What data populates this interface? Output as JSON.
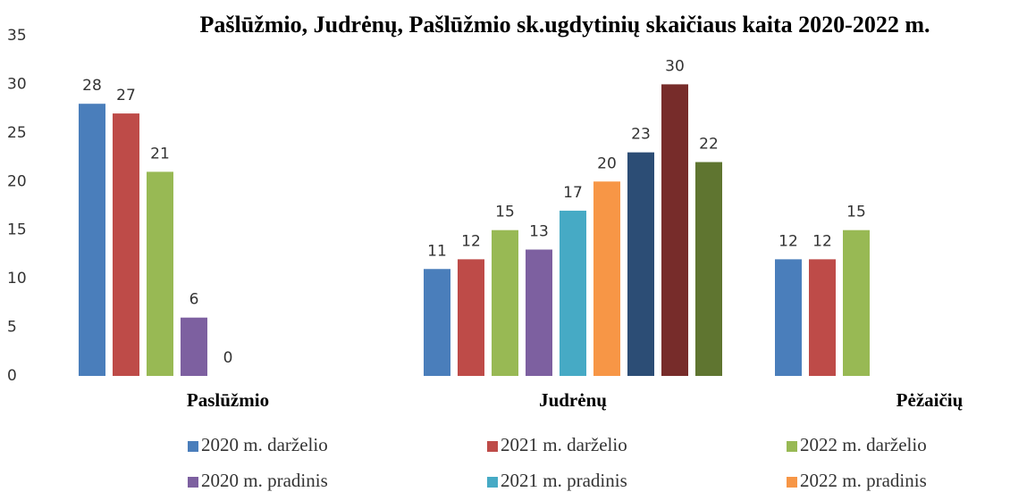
{
  "chart_data": {
    "type": "bar",
    "title": "Pašlūžmio, Judrėnų, Pašlūžmio sk.ugdytinių skaičiaus kaita 2020-2022 m.",
    "categories": [
      "Paslūžmio",
      "Judrėnų",
      "Pėžaičių"
    ],
    "series": [
      {
        "name": "2020 m. darželio",
        "color": "#4a7ebb",
        "values": [
          28,
          11,
          12
        ]
      },
      {
        "name": "2021 m. darželio",
        "color": "#be4b48",
        "values": [
          27,
          12,
          12
        ]
      },
      {
        "name": "2022 m. darželio",
        "color": "#98b954",
        "values": [
          21,
          15,
          15
        ]
      },
      {
        "name": "2020 m. pradinis",
        "color": "#7d60a0",
        "values": [
          6,
          13,
          null
        ]
      },
      {
        "name": "2021 m. pradinis",
        "color": "#46aac5",
        "values": [
          0,
          17,
          null
        ]
      },
      {
        "name": "2022 m. pradinis",
        "color": "#f79646",
        "values": [
          null,
          20,
          null
        ]
      },
      {
        "color": "#2c4d75",
        "values": [
          null,
          23,
          null
        ]
      },
      {
        "color": "#772c2a",
        "values": [
          null,
          30,
          null
        ]
      },
      {
        "color": "#5f7530",
        "values": [
          null,
          22,
          null
        ]
      }
    ],
    "ylim": [
      0,
      35
    ],
    "yticks": [
      0,
      5,
      10,
      15,
      20,
      25,
      30,
      35
    ],
    "grid": false
  }
}
